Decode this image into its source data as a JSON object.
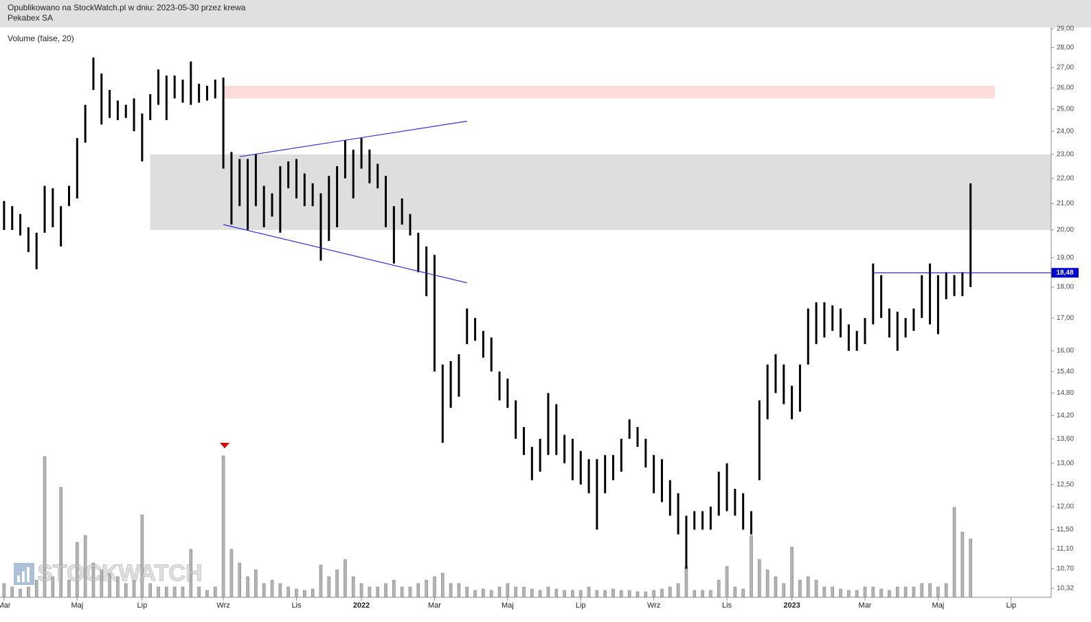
{
  "header": {
    "published": "Opublikowano na StockWatch.pl w dniu: 2023-05-30 przez krewa",
    "instrument": "Pekabex SA"
  },
  "chart_data": {
    "type": "range-bar",
    "indicator_label": "Volume (false, 20)",
    "watermark": "STOCKWATCH",
    "log_scale": true,
    "color": "#000000",
    "volume_color": "#b4b4b4",
    "categories": [
      "Mar",
      null,
      null,
      null,
      null,
      null,
      null,
      null,
      null,
      "Maj",
      null,
      null,
      null,
      null,
      null,
      null,
      null,
      "Lip",
      null,
      null,
      null,
      null,
      null,
      null,
      null,
      null,
      null,
      "Wrz",
      null,
      null,
      null,
      null,
      null,
      null,
      null,
      null,
      "Lis",
      null,
      null,
      null,
      null,
      null,
      null,
      null,
      "2022",
      null,
      null,
      null,
      null,
      null,
      null,
      null,
      null,
      "Mar",
      null,
      null,
      null,
      null,
      null,
      null,
      null,
      null,
      "Maj",
      null,
      null,
      null,
      null,
      null,
      null,
      null,
      null,
      "Lip",
      null,
      null,
      null,
      null,
      null,
      null,
      null,
      null,
      "Wrz",
      null,
      null,
      null,
      null,
      null,
      null,
      null,
      null,
      "Lis",
      null,
      null,
      null,
      null,
      null,
      null,
      null,
      "2023",
      null,
      null,
      null,
      null,
      null,
      null,
      null,
      null,
      "Mar",
      null,
      null,
      null,
      null,
      null,
      null,
      null,
      null,
      "Maj",
      null,
      null,
      null,
      null,
      null,
      null,
      null,
      null,
      "Lip",
      null,
      null,
      null,
      null
    ],
    "high": [
      21.1,
      20.9,
      20.6,
      20.1,
      19.9,
      21.7,
      21.6,
      20.9,
      21.7,
      23.7,
      25.2,
      27.5,
      26.7,
      25.9,
      25.4,
      25.2,
      25.5,
      24.8,
      25.7,
      26.9,
      26.6,
      26.6,
      26.4,
      27.3,
      26.2,
      26.1,
      26.4,
      26.5,
      23.1,
      22.8,
      22.8,
      23.0,
      21.7,
      21.4,
      22.5,
      22.7,
      22.8,
      22.2,
      21.8,
      21.4,
      22.1,
      22.5,
      23.6,
      23.2,
      23.7,
      23.2,
      22.6,
      22.1,
      20.9,
      21.2,
      20.6,
      19.9,
      19.4,
      19.1,
      15.6,
      15.7,
      15.9,
      17.3,
      17.0,
      16.6,
      16.4,
      15.4,
      15.2,
      14.6,
      13.9,
      13.4,
      13.6,
      14.8,
      14.5,
      13.7,
      13.6,
      13.3,
      13.1,
      13.1,
      13.2,
      13.2,
      13.6,
      14.1,
      13.9,
      13.6,
      13.2,
      13.1,
      12.6,
      12.3,
      11.8,
      11.9,
      11.9,
      12.0,
      12.8,
      13.0,
      12.4,
      12.3,
      11.9,
      14.6,
      15.6,
      15.9,
      15.6,
      15.0,
      15.6,
      17.3,
      17.5,
      17.5,
      17.4,
      17.3,
      16.8,
      16.6,
      17.0,
      18.8,
      18.4,
      17.3,
      17.2,
      17.0,
      17.3,
      18.4,
      18.8,
      18.4,
      18.5,
      18.4,
      18.5,
      21.8,
      null,
      null,
      null,
      null,
      null,
      null,
      null,
      null,
      null
    ],
    "low": [
      20.0,
      20.0,
      19.8,
      19.2,
      18.6,
      19.9,
      20.1,
      19.4,
      20.9,
      21.2,
      23.5,
      25.9,
      24.3,
      24.6,
      24.5,
      24.6,
      24.0,
      22.7,
      24.5,
      25.2,
      24.5,
      25.5,
      25.3,
      25.2,
      25.3,
      25.4,
      25.5,
      22.4,
      20.2,
      20.9,
      20.0,
      20.9,
      20.1,
      20.5,
      19.9,
      21.6,
      21.2,
      20.9,
      20.9,
      18.9,
      19.6,
      20.1,
      22.0,
      21.2,
      22.4,
      21.8,
      21.6,
      20.1,
      18.8,
      20.2,
      19.8,
      18.5,
      17.7,
      15.4,
      13.5,
      14.4,
      14.7,
      16.2,
      16.3,
      15.8,
      15.4,
      14.6,
      14.4,
      13.6,
      13.2,
      12.6,
      12.8,
      13.2,
      13.2,
      13.0,
      12.6,
      12.5,
      12.3,
      11.5,
      12.3,
      12.6,
      12.8,
      13.6,
      13.4,
      12.9,
      12.3,
      12.1,
      11.8,
      11.4,
      10.7,
      11.5,
      11.5,
      11.5,
      11.8,
      11.9,
      11.8,
      11.5,
      11.4,
      12.6,
      14.1,
      14.8,
      14.5,
      14.1,
      14.3,
      15.6,
      16.2,
      16.4,
      16.6,
      16.4,
      16.0,
      16.0,
      16.2,
      16.8,
      17.0,
      16.4,
      16.0,
      16.4,
      16.6,
      17.0,
      16.8,
      16.5,
      17.6,
      17.7,
      17.7,
      18.0,
      null,
      null,
      null,
      null,
      null,
      null,
      null,
      null,
      null
    ],
    "volume": [
      20,
      15,
      12,
      15,
      25,
      205,
      30,
      160,
      25,
      80,
      90,
      50,
      40,
      35,
      30,
      20,
      25,
      120,
      20,
      15,
      15,
      15,
      15,
      70,
      15,
      10,
      15,
      206,
      70,
      50,
      30,
      40,
      20,
      25,
      20,
      15,
      12,
      10,
      12,
      47,
      30,
      40,
      55,
      30,
      20,
      15,
      15,
      20,
      25,
      15,
      15,
      20,
      25,
      30,
      35,
      20,
      20,
      15,
      10,
      12,
      10,
      15,
      20,
      15,
      15,
      12,
      10,
      15,
      12,
      10,
      10,
      10,
      15,
      10,
      10,
      12,
      10,
      10,
      8,
      8,
      10,
      12,
      15,
      20,
      45,
      10,
      10,
      10,
      25,
      45,
      15,
      12,
      90,
      55,
      40,
      30,
      20,
      73,
      25,
      30,
      25,
      15,
      15,
      12,
      10,
      10,
      15,
      15,
      12,
      10,
      15,
      15,
      15,
      20,
      20,
      15,
      20,
      131,
      95,
      85,
      null,
      null,
      null,
      null,
      null,
      null,
      null,
      null,
      null
    ],
    "ylim": [
      10.15,
      29.07
    ],
    "yticks": [
      {
        "value": 10.32,
        "label": "10,32"
      },
      {
        "value": 10.7,
        "label": "10,70"
      },
      {
        "value": 11.1,
        "label": "11,10"
      },
      {
        "value": 11.5,
        "label": "11,50"
      },
      {
        "value": 12,
        "label": "12,00"
      },
      {
        "value": 12.5,
        "label": "12,50"
      },
      {
        "value": 13,
        "label": "13,00"
      },
      {
        "value": 13.6,
        "label": "13,60"
      },
      {
        "value": 14.2,
        "label": "14,20"
      },
      {
        "value": 14.8,
        "label": "14,80"
      },
      {
        "value": 15.4,
        "label": "15,40"
      },
      {
        "value": 16,
        "label": "16,00"
      },
      {
        "value": 17,
        "label": "17,00"
      },
      {
        "value": 18,
        "label": "18,00"
      },
      {
        "value": 19,
        "label": "19,00"
      },
      {
        "value": 20,
        "label": "20,00"
      },
      {
        "value": 21,
        "label": "21,00"
      },
      {
        "value": 22,
        "label": "22,00"
      },
      {
        "value": 23,
        "label": "23,00"
      },
      {
        "value": 24,
        "label": "24,00"
      },
      {
        "value": 25,
        "label": "25,00"
      },
      {
        "value": 26,
        "label": "26,00"
      },
      {
        "value": 27,
        "label": "27,00"
      },
      {
        "value": 28,
        "label": "28,00"
      },
      {
        "value": 29,
        "label": "29,00"
      }
    ],
    "zones": [
      {
        "from": 18,
        "low": 20,
        "high": 23,
        "color": "#dedede"
      },
      {
        "from": 27,
        "to": 122,
        "low": 25.5,
        "high": 26.1,
        "color": "#ffdcdc"
      }
    ],
    "trend_lines": [
      {
        "x": [
          29,
          57
        ],
        "y": [
          22.9,
          24.45
        ],
        "color": "#3333cc"
      },
      {
        "x": [
          27,
          57
        ],
        "y": [
          20.2,
          18.14
        ],
        "color": "#3333cc"
      }
    ],
    "level": {
      "from": 107,
      "value": 18.48,
      "label": "18,48",
      "color": "#0000cc"
    }
  }
}
